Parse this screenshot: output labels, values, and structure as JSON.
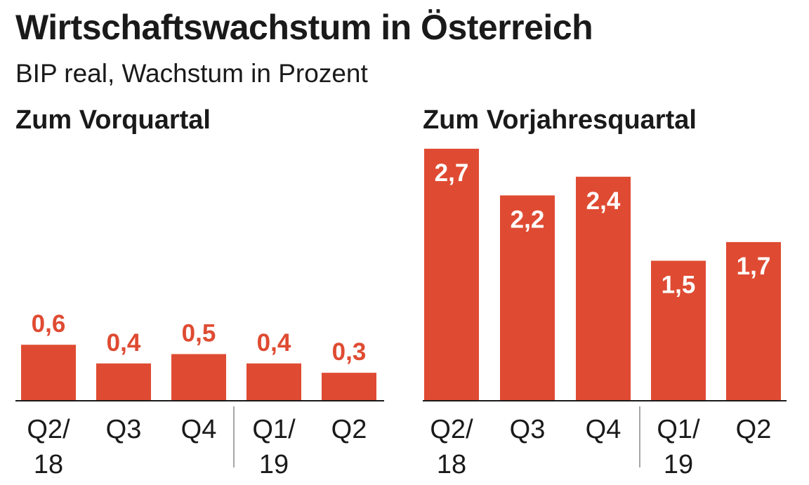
{
  "title": "Wirtschaftswachstum in Österreich",
  "subtitle": "BIP real, Wachstum in Prozent",
  "colors": {
    "bar": "#df4b32",
    "label_outside": "#df4b32",
    "label_inside": "#ffffff",
    "axis": "#1a1a1a",
    "divider": "#888888"
  },
  "chart_data": [
    {
      "type": "bar",
      "title": "Zum Vorquartal",
      "categories": [
        {
          "line1": "Q2/",
          "line2": "18"
        },
        {
          "line1": "Q3",
          "line2": ""
        },
        {
          "line1": "Q4",
          "line2": ""
        },
        {
          "line1": "Q1/",
          "line2": "19"
        },
        {
          "line1": "Q2",
          "line2": ""
        }
      ],
      "values": [
        0.6,
        0.4,
        0.5,
        0.4,
        0.3
      ],
      "value_labels": [
        "0,6",
        "0,4",
        "0,5",
        "0,4",
        "0,3"
      ],
      "label_position": "above",
      "ylim": [
        0,
        2.7
      ]
    },
    {
      "type": "bar",
      "title": "Zum Vorjahresquartal",
      "categories": [
        {
          "line1": "Q2/",
          "line2": "18"
        },
        {
          "line1": "Q3",
          "line2": ""
        },
        {
          "line1": "Q4",
          "line2": ""
        },
        {
          "line1": "Q1/",
          "line2": "19"
        },
        {
          "line1": "Q2",
          "line2": ""
        }
      ],
      "values": [
        2.7,
        2.2,
        2.4,
        1.5,
        1.7
      ],
      "value_labels": [
        "2,7",
        "2,2",
        "2,4",
        "1,5",
        "1,7"
      ],
      "label_position": "inside",
      "ylim": [
        0,
        2.7
      ]
    }
  ]
}
